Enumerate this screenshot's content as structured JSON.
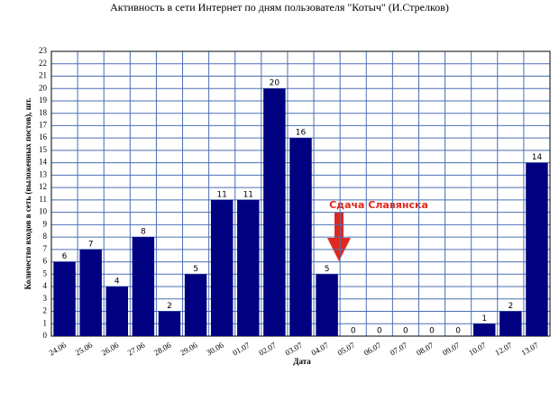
{
  "chart_data": {
    "type": "bar",
    "title": "Активность в сети Интернет по дням пользователя \"Котыч\" (И.Стрелков)",
    "x_label": "Дата",
    "y_label": "Количество входов в сеть (выложенных постов), шт.",
    "annotation": "Сдача Славянска",
    "categories": [
      "24.06",
      "25.06",
      "26.06",
      "27.06",
      "28.06",
      "29.06",
      "30.06",
      "01.07",
      "02.07",
      "03.07",
      "04.07",
      "05.07",
      "06.07",
      "07.07",
      "08.07",
      "09.07",
      "10.07",
      "12.07",
      "13.07"
    ],
    "values": [
      6,
      7,
      4,
      8,
      2,
      5,
      11,
      11,
      20,
      16,
      5,
      0,
      0,
      0,
      0,
      0,
      1,
      2,
      14
    ],
    "color": "#000080",
    "ylim": [
      0,
      23
    ],
    "yticks": [
      0,
      1,
      2,
      3,
      4,
      5,
      6,
      7,
      8,
      9,
      10,
      11,
      12,
      13,
      14,
      15,
      16,
      17,
      18,
      19,
      20,
      21,
      22,
      23
    ],
    "grid": true
  }
}
